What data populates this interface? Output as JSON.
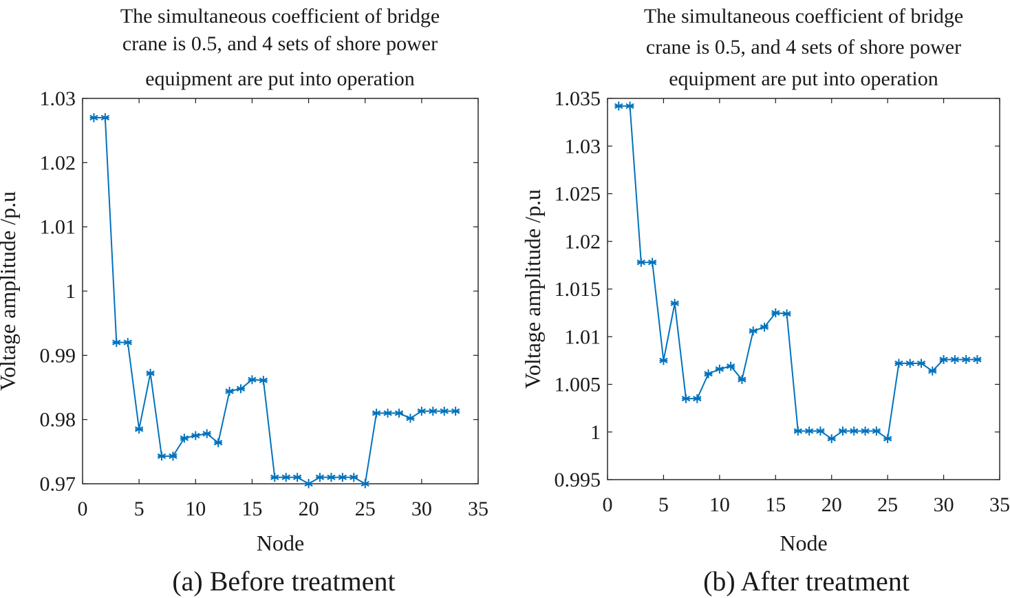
{
  "colors": {
    "series": "#0072BD",
    "axis": "#1a1a1a"
  },
  "chart_data": [
    {
      "id": "a",
      "type": "line",
      "title_lines": [
        "The simultaneous coefficient of bridge",
        "crane is 0.5, and 4 sets of shore power",
        "equipment are put into operation"
      ],
      "xlabel": "Node",
      "ylabel": "Voltage amplitude /p.u",
      "caption": "(a) Before treatment",
      "xlim": [
        0,
        35
      ],
      "ylim": [
        0.97,
        1.03
      ],
      "xticks": [
        0,
        5,
        10,
        15,
        20,
        25,
        30,
        35
      ],
      "xtick_labels": [
        "0",
        "5",
        "10",
        "15",
        "20",
        "25",
        "30",
        "35"
      ],
      "yticks": [
        0.97,
        0.98,
        0.99,
        1.0,
        1.01,
        1.02,
        1.03
      ],
      "ytick_labels": [
        "0.97",
        "0.98",
        "0.99",
        "1",
        "1.01",
        "1.02",
        "1.03"
      ],
      "marker": "asterisk",
      "x": [
        1,
        2,
        3,
        4,
        5,
        6,
        7,
        8,
        9,
        10,
        11,
        12,
        13,
        14,
        15,
        16,
        17,
        18,
        19,
        20,
        21,
        22,
        23,
        24,
        25,
        26,
        27,
        28,
        29,
        30,
        31,
        32,
        33
      ],
      "values": [
        1.027,
        1.027,
        0.992,
        0.992,
        0.9785,
        0.9872,
        0.9743,
        0.9743,
        0.9771,
        0.9775,
        0.9778,
        0.9764,
        0.9844,
        0.9848,
        0.9862,
        0.9861,
        0.971,
        0.971,
        0.971,
        0.97,
        0.971,
        0.971,
        0.971,
        0.971,
        0.97,
        0.981,
        0.981,
        0.981,
        0.9802,
        0.9813,
        0.9813,
        0.9813,
        0.9813
      ]
    },
    {
      "id": "b",
      "type": "line",
      "title_lines": [
        "The simultaneous coefficient of bridge",
        "crane is 0.5, and 4 sets of shore power",
        "equipment are put into operation"
      ],
      "xlabel": "Node",
      "ylabel": "Voltage amplitude /p.u",
      "caption": "(b) After treatment",
      "xlim": [
        0,
        35
      ],
      "ylim": [
        0.995,
        1.035
      ],
      "xticks": [
        0,
        5,
        10,
        15,
        20,
        25,
        30,
        35
      ],
      "xtick_labels": [
        "0",
        "5",
        "10",
        "15",
        "20",
        "25",
        "30",
        "35"
      ],
      "yticks": [
        0.995,
        1.0,
        1.005,
        1.01,
        1.015,
        1.02,
        1.025,
        1.03,
        1.035
      ],
      "ytick_labels": [
        "0.995",
        "1",
        "1.005",
        "1.01",
        "1.015",
        "1.02",
        "1.025",
        "1.03",
        "1.035"
      ],
      "marker": "asterisk",
      "x": [
        1,
        2,
        3,
        4,
        5,
        6,
        7,
        8,
        9,
        10,
        11,
        12,
        13,
        14,
        15,
        16,
        17,
        18,
        19,
        20,
        21,
        22,
        23,
        24,
        25,
        26,
        27,
        28,
        29,
        30,
        31,
        32,
        33
      ],
      "values": [
        1.0342,
        1.0342,
        1.0178,
        1.0178,
        1.0075,
        1.0135,
        1.0035,
        1.0035,
        1.0061,
        1.0066,
        1.0069,
        1.0055,
        1.0106,
        1.011,
        1.0125,
        1.0124,
        1.0001,
        1.0001,
        1.0001,
        0.9993,
        1.0001,
        1.0001,
        1.0001,
        1.0001,
        0.9993,
        1.0072,
        1.0072,
        1.0072,
        1.0064,
        1.0076,
        1.0076,
        1.0076,
        1.0076
      ]
    }
  ]
}
